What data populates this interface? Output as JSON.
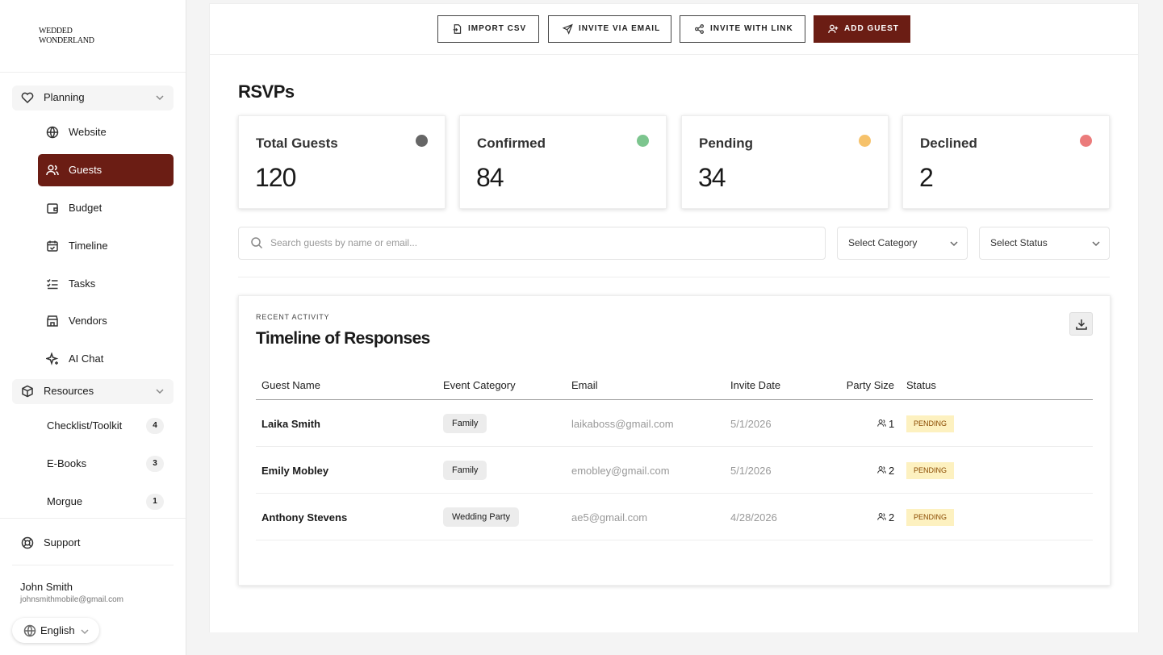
{
  "sidebar": {
    "brand": "WEDDED WONDERLAND",
    "planning": {
      "label": "Planning",
      "items": [
        "Website",
        "Guests",
        "Budget",
        "Timeline",
        "Tasks",
        "Vendors",
        "AI Chat"
      ]
    },
    "resources": {
      "label": "Resources",
      "items": [
        {
          "label": "Checklist/Toolkit",
          "count": 4
        },
        {
          "label": "E-Books",
          "count": 3
        },
        {
          "label": "Morgue",
          "count": 1
        }
      ]
    },
    "support": "Support",
    "user": {
      "name": "John Smith",
      "email": "johnsmithmobile@gmail.com"
    },
    "language": "English"
  },
  "toolbar": [
    "IMPORT CSV",
    "INVITE VIA EMAIL",
    "INVITE WITH LINK",
    "ADD GUEST"
  ],
  "title": "RSVPs",
  "stats": [
    {
      "label": "Total Guests",
      "value": 120,
      "color": "#666666"
    },
    {
      "label": "Confirmed",
      "value": 84,
      "color": "#7cc58e"
    },
    {
      "label": "Pending",
      "value": 34,
      "color": "#f6c26b"
    },
    {
      "label": "Declined",
      "value": 2,
      "color": "#eb7b7b"
    }
  ],
  "search": "Search guests by name or email...",
  "filters": [
    "Select Category",
    "Select Status"
  ],
  "activity": {
    "eyebrow": "RECENT ACTIVITY",
    "title": "Timeline of Responses",
    "columns": [
      "Guest Name",
      "Event Category",
      "Email",
      "Invite Date",
      "Party Size",
      "Status"
    ],
    "rows": [
      [
        "Laika Smith",
        "Family",
        "laikaboss@gmail.com",
        "5/1/2026",
        1,
        "PENDING"
      ],
      [
        "Emily Mobley",
        "Family",
        "emobley@gmail.com",
        "5/1/2026",
        2,
        "PENDING"
      ],
      [
        "Anthony Stevens",
        "Wedding Party",
        "ae5@gmail.com",
        "4/28/2026",
        2,
        "PENDING"
      ]
    ]
  }
}
